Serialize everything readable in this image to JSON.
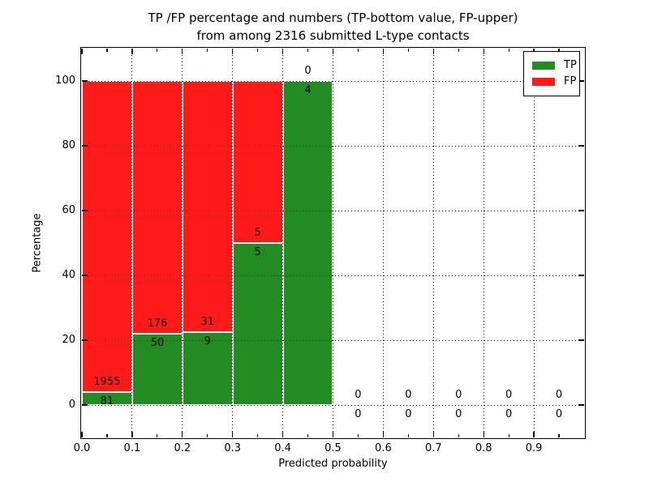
{
  "figure": {
    "title_line1": "TP /FP percentage and numbers (TP-bottom value, FP-upper)",
    "title_line2": "from among 2316 submitted L-type contacts",
    "background": "#ffffff"
  },
  "axes": {
    "xlabel": "Predicted probability",
    "ylabel": "Percentage",
    "xlim": [
      0.0,
      1.0
    ],
    "ylim": [
      -10,
      110
    ],
    "xtick_values": [
      0.0,
      0.1,
      0.2,
      0.3,
      0.4,
      0.5,
      0.6,
      0.7,
      0.8,
      0.9
    ],
    "xtick_labels": [
      "0.0",
      "0.1",
      "0.2",
      "0.3",
      "0.4",
      "0.5",
      "0.6",
      "0.7",
      "0.8",
      "0.9"
    ],
    "ytick_values": [
      0,
      20,
      40,
      60,
      80,
      100
    ],
    "ytick_labels": [
      "0",
      "20",
      "40",
      "60",
      "80",
      "100"
    ],
    "grid_style": "dotted",
    "grid_color": "#000000"
  },
  "legend": {
    "position": "upper right",
    "items": [
      {
        "label": "TP",
        "color": "#228b22"
      },
      {
        "label": "FP",
        "color": "#ff1a1a"
      }
    ]
  },
  "chart_data": {
    "type": "bar",
    "stacked": true,
    "normalized": "each bin scaled to 100%",
    "title": "TP /FP percentage and numbers (TP-bottom value, FP-upper) from among 2316 submitted L-type contacts",
    "xlabel": "Predicted probability",
    "ylabel": "Percentage",
    "total_contacts": 2316,
    "bin_width": 0.1,
    "bin_starts": [
      0.0,
      0.1,
      0.2,
      0.3,
      0.4,
      0.5,
      0.6,
      0.7,
      0.8,
      0.9
    ],
    "series": [
      {
        "name": "TP",
        "color": "#228b22",
        "counts": [
          81,
          50,
          9,
          5,
          4,
          0,
          0,
          0,
          0,
          0
        ],
        "percent": [
          3.98,
          22.12,
          22.5,
          50,
          100,
          0,
          0,
          0,
          0,
          0
        ]
      },
      {
        "name": "FP",
        "color": "#ff1a1a",
        "counts": [
          1955,
          176,
          31,
          5,
          0,
          0,
          0,
          0,
          0,
          0
        ],
        "percent": [
          96.02,
          77.88,
          77.5,
          50,
          0,
          0,
          0,
          0,
          0,
          0
        ]
      }
    ],
    "bar_edge_color": "#ffffff",
    "xlim": [
      0.0,
      1.0
    ],
    "ylim": [
      -10,
      110
    ],
    "legend_position": "upper right",
    "grid": true
  }
}
